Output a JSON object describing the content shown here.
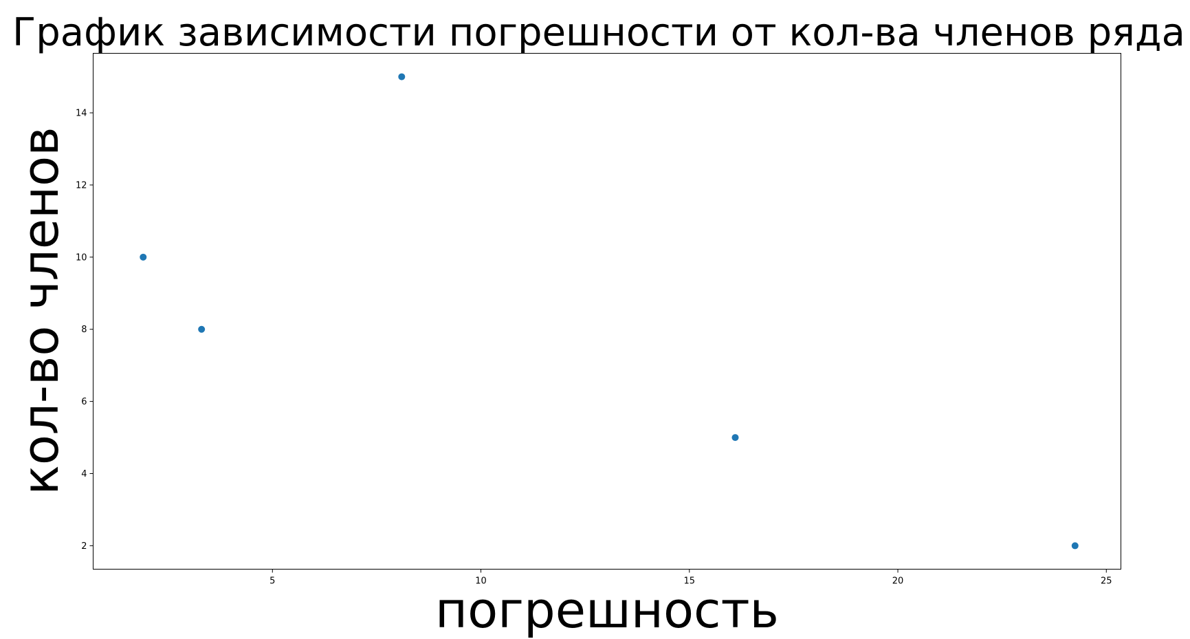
{
  "chart_data": {
    "type": "scatter",
    "title": "График зависимости погрешности от кол-ва членов ряда",
    "xlabel": "погрешность",
    "ylabel": "кол-во членов",
    "x": [
      1.9,
      3.3,
      8.1,
      16.1,
      24.25
    ],
    "y": [
      10,
      8,
      15,
      5,
      2
    ],
    "xlim": [
      0.7,
      25.35
    ],
    "ylim": [
      1.35,
      15.65
    ],
    "xticks": [
      5,
      10,
      15,
      20,
      25
    ],
    "yticks": [
      2,
      4,
      6,
      8,
      10,
      12,
      14
    ],
    "grid": false,
    "marker_color": "#1f77b4"
  }
}
